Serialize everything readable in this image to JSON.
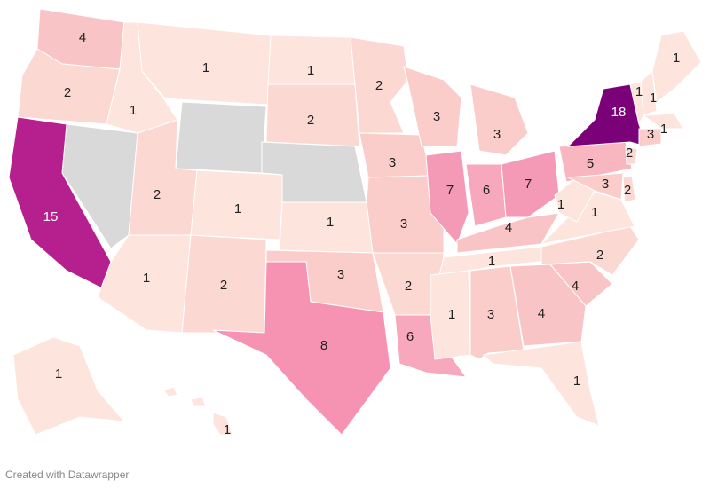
{
  "map": {
    "regions": [
      {
        "value": 4,
        "color": "#f9c4c6"
      },
      {
        "value": 2,
        "color": "#fcd8d3"
      },
      {
        "value": 15,
        "color": "#b5208e"
      },
      {
        "value": 1,
        "color": "#fde4dc"
      },
      {
        "value": 1,
        "color": "#fde4dc"
      },
      {
        "value": 2,
        "color": "#fcd8d3"
      },
      {
        "value": 1,
        "color": "#fde4dc"
      },
      {
        "value": 1,
        "color": "#fde4dc"
      },
      {
        "value": 2,
        "color": "#fcd8d3"
      },
      {
        "value": 1,
        "color": "#fde4dc"
      },
      {
        "value": 2,
        "color": "#fcd8d3"
      },
      {
        "value": 1,
        "color": "#fde4dc"
      },
      {
        "value": 3,
        "color": "#fbcdca"
      },
      {
        "value": 8,
        "color": "#f693b3"
      },
      {
        "value": 2,
        "color": "#fcd8d3"
      },
      {
        "value": 3,
        "color": "#fbcdca"
      },
      {
        "value": 3,
        "color": "#fbcdca"
      },
      {
        "value": 2,
        "color": "#fcd8d3"
      },
      {
        "value": 6,
        "color": "#f7a8bd"
      },
      {
        "value": 3,
        "color": "#fbcdca"
      },
      {
        "value": 7,
        "color": "#f59ab6"
      },
      {
        "value": 3,
        "color": "#fbcdca"
      },
      {
        "value": 6,
        "color": "#f7a8bd"
      },
      {
        "value": 7,
        "color": "#f59ab6"
      },
      {
        "value": 4,
        "color": "#f9c4c6"
      },
      {
        "value": 1,
        "color": "#fde4dc"
      },
      {
        "value": 1,
        "color": "#fde4dc"
      },
      {
        "value": 3,
        "color": "#fbcdca"
      },
      {
        "value": 4,
        "color": "#f9c4c6"
      },
      {
        "value": 1,
        "color": "#fde4dc"
      },
      {
        "value": 4,
        "color": "#f9c4c6"
      },
      {
        "value": 2,
        "color": "#fcd8d3"
      },
      {
        "value": 1,
        "color": "#fde4dc"
      },
      {
        "value": 1,
        "color": "#fde4dc"
      },
      {
        "value": 5,
        "color": "#f8b6c0"
      },
      {
        "value": 18,
        "color": "#7a0177"
      },
      {
        "value": 1,
        "color": "#fde4dc"
      },
      {
        "value": 1,
        "color": "#fde4dc"
      },
      {
        "value": 1,
        "color": "#fde4dc"
      },
      {
        "value": 1,
        "color": "#fde4dc"
      },
      {
        "value": 3,
        "color": "#fbcdca"
      },
      {
        "value": 2,
        "color": "#fcd8d3"
      },
      {
        "value": 3,
        "color": "#fbcdca"
      },
      {
        "value": 2,
        "color": "#fcd8d3"
      },
      {
        "value": 1,
        "color": "#fde4dc"
      },
      {
        "value": 1,
        "color": "#fde4dc"
      }
    ]
  },
  "footer": "Created with Datawrapper"
}
